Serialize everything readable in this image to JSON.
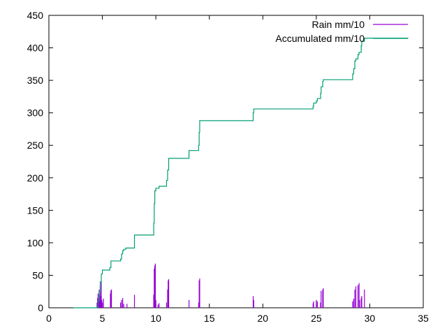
{
  "chart_data": {
    "type": "line",
    "title": "",
    "xlabel": "",
    "ylabel": "",
    "xlim": [
      0,
      35
    ],
    "ylim": [
      0,
      450
    ],
    "x_ticks": [
      0,
      5,
      10,
      15,
      20,
      25,
      30,
      35
    ],
    "y_ticks": [
      0,
      50,
      100,
      150,
      200,
      250,
      300,
      350,
      400,
      450
    ],
    "grid": false,
    "legend_position": "top-right",
    "series": [
      {
        "name": "Rain mm/10",
        "style": "impulses",
        "color": "#9400d3",
        "points": [
          [
            4.5,
            8
          ],
          [
            4.55,
            15
          ],
          [
            4.6,
            22
          ],
          [
            4.65,
            12
          ],
          [
            4.7,
            28
          ],
          [
            4.75,
            20
          ],
          [
            4.8,
            35
          ],
          [
            4.85,
            18
          ],
          [
            4.9,
            40
          ],
          [
            4.95,
            12
          ],
          [
            5.0,
            8
          ],
          [
            5.1,
            14
          ],
          [
            5.75,
            22
          ],
          [
            5.8,
            27
          ],
          [
            5.85,
            28
          ],
          [
            6.7,
            8
          ],
          [
            6.8,
            12
          ],
          [
            6.9,
            15
          ],
          [
            7.0,
            6
          ],
          [
            7.3,
            6
          ],
          [
            8.0,
            20
          ],
          [
            9.8,
            20
          ],
          [
            9.85,
            60
          ],
          [
            9.9,
            65
          ],
          [
            9.95,
            68
          ],
          [
            10.0,
            12
          ],
          [
            10.2,
            5
          ],
          [
            10.3,
            7
          ],
          [
            11.0,
            8
          ],
          [
            11.1,
            28
          ],
          [
            11.15,
            42
          ],
          [
            11.2,
            44
          ],
          [
            13.1,
            12
          ],
          [
            14.0,
            8
          ],
          [
            14.05,
            42
          ],
          [
            14.1,
            45
          ],
          [
            19.1,
            18
          ],
          [
            19.15,
            12
          ],
          [
            24.7,
            7
          ],
          [
            24.75,
            10
          ],
          [
            25.0,
            12
          ],
          [
            25.1,
            10
          ],
          [
            25.4,
            8
          ],
          [
            25.45,
            26
          ],
          [
            25.6,
            28
          ],
          [
            25.65,
            30
          ],
          [
            28.4,
            10
          ],
          [
            28.5,
            14
          ],
          [
            28.6,
            28
          ],
          [
            28.7,
            33
          ],
          [
            28.9,
            35
          ],
          [
            29.0,
            38
          ],
          [
            29.05,
            12
          ],
          [
            29.2,
            15
          ],
          [
            29.25,
            18
          ],
          [
            29.5,
            28
          ]
        ]
      },
      {
        "name": "Accumulated mm/10",
        "style": "steps",
        "color": "#009e73",
        "points": [
          [
            2.3,
            0
          ],
          [
            4.5,
            1
          ],
          [
            4.6,
            10
          ],
          [
            4.7,
            25
          ],
          [
            4.8,
            40
          ],
          [
            4.9,
            52
          ],
          [
            5.0,
            58
          ],
          [
            5.7,
            62
          ],
          [
            5.8,
            72
          ],
          [
            6.7,
            75
          ],
          [
            6.8,
            83
          ],
          [
            6.9,
            88
          ],
          [
            7.0,
            90
          ],
          [
            7.2,
            92
          ],
          [
            8.0,
            112
          ],
          [
            9.8,
            130
          ],
          [
            9.85,
            160
          ],
          [
            9.9,
            180
          ],
          [
            10.0,
            184
          ],
          [
            10.3,
            187
          ],
          [
            11.0,
            196
          ],
          [
            11.1,
            212
          ],
          [
            11.2,
            230
          ],
          [
            13.1,
            242
          ],
          [
            14.0,
            250
          ],
          [
            14.05,
            270
          ],
          [
            14.1,
            288
          ],
          [
            19.1,
            300
          ],
          [
            19.15,
            306
          ],
          [
            24.7,
            310
          ],
          [
            24.75,
            315
          ],
          [
            25.0,
            318
          ],
          [
            25.1,
            322
          ],
          [
            25.4,
            330
          ],
          [
            25.45,
            340
          ],
          [
            25.6,
            348
          ],
          [
            25.65,
            351
          ],
          [
            28.4,
            360
          ],
          [
            28.5,
            368
          ],
          [
            28.6,
            380
          ],
          [
            28.7,
            383
          ],
          [
            28.9,
            390
          ],
          [
            29.0,
            393
          ],
          [
            29.2,
            403
          ],
          [
            29.25,
            410
          ],
          [
            29.5,
            415
          ],
          [
            33.6,
            415
          ]
        ]
      }
    ]
  }
}
